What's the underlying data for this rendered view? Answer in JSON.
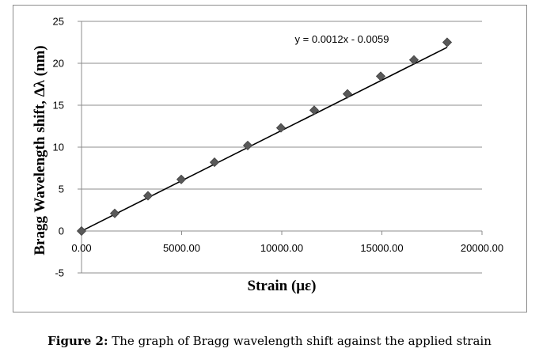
{
  "chart_data": {
    "type": "scatter",
    "xlabel": "Strain (με)",
    "ylabel": "Bragg Wavelength shift, Δλ (nm)",
    "xlim": [
      0,
      20000
    ],
    "ylim": [
      -5,
      25
    ],
    "x_ticks": [
      0,
      5000,
      10000,
      15000,
      20000
    ],
    "x_tick_labels": [
      "0.00",
      "5000.00",
      "10000.00",
      "15000.00",
      "20000.00"
    ],
    "y_ticks": [
      -5,
      0,
      5,
      10,
      15,
      20,
      25
    ],
    "y_tick_labels": [
      "-5",
      "0",
      "5",
      "10",
      "15",
      "20",
      "25"
    ],
    "grid": "horizontal",
    "marker": "diamond",
    "marker_color": "#595959",
    "series": [
      {
        "x": [
          0,
          1660,
          3320,
          4980,
          6640,
          8300,
          9960,
          11620,
          13280,
          14940,
          16600,
          18260
        ],
        "y": [
          0.0,
          2.1,
          4.2,
          6.15,
          8.2,
          10.2,
          12.3,
          14.4,
          16.35,
          18.45,
          20.4,
          22.5
        ]
      }
    ],
    "trendline": {
      "slope": 0.0012,
      "intercept": -0.0059,
      "equation": "y = 0.0012x - 0.0059",
      "color": "#000000"
    }
  },
  "caption": {
    "label": "Figure 2:",
    "text": " The graph of Bragg wavelength shift against the applied strain"
  }
}
